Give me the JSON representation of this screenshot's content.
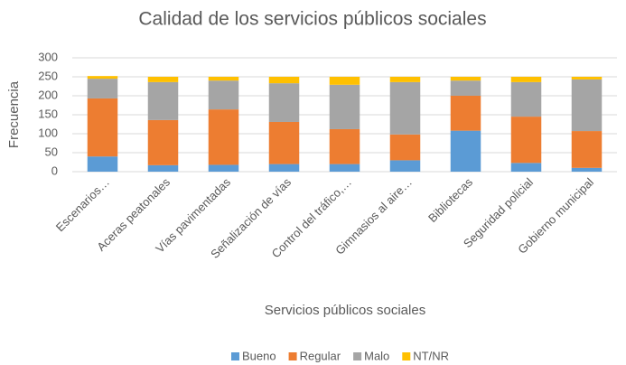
{
  "chart_data": {
    "type": "stacked_bar",
    "title": "Calidad de los servicios públicos sociales",
    "x_label": "Servicios públicos sociales",
    "y_label": "Frecuencia",
    "categories": [
      "Escenarios…",
      "Aceras peatonales",
      "Vías pavimentadas",
      "Señalización de vías",
      "Control del tráfico,…",
      "Gimnasios al aire…",
      "Bibliotecas",
      "Seguridad policial",
      "Gobierno municipal"
    ],
    "series": [
      {
        "name": "Bueno",
        "color": "#5b9bd5",
        "values": [
          40,
          17,
          18,
          20,
          20,
          30,
          108,
          23,
          10
        ]
      },
      {
        "name": "Regular",
        "color": "#ed7d31",
        "values": [
          153,
          119,
          146,
          111,
          92,
          68,
          92,
          122,
          97
        ]
      },
      {
        "name": "Malo",
        "color": "#a5a5a5",
        "values": [
          52,
          100,
          76,
          102,
          117,
          138,
          40,
          91,
          136
        ]
      },
      {
        "name": "NT/NR",
        "color": "#ffc000",
        "values": [
          7,
          14,
          10,
          17,
          21,
          14,
          10,
          14,
          7
        ]
      }
    ],
    "ylim": [
      0,
      300
    ],
    "yticks": [
      0,
      50,
      100,
      150,
      200,
      250,
      300
    ],
    "grid": true,
    "legend": "bottom"
  }
}
